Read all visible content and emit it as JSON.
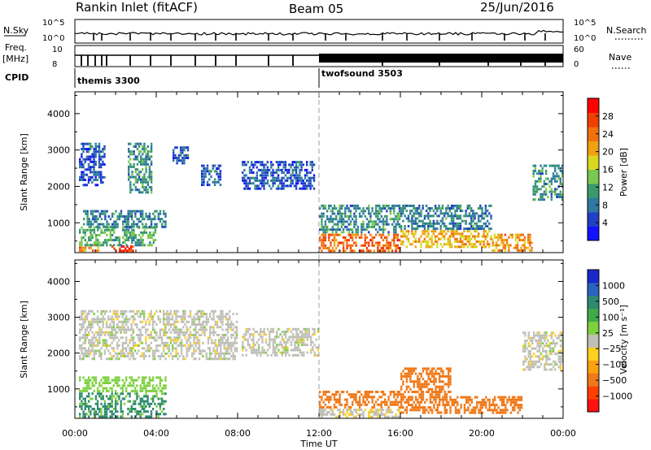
{
  "header": {
    "station": "Rankin Inlet (fitACF)",
    "beam": "Beam 05",
    "date": "25/Jun/2016"
  },
  "strip_panels": {
    "nsky_label": "N.Sky",
    "nsky_ticks": [
      "10^5",
      "10^0"
    ],
    "nsearch_label": "N.Search",
    "nsearch_ticks": [
      "10^5",
      "10^0"
    ],
    "freq_label": "Freq.",
    "freq_unit": "[MHz]",
    "freq_ticks": [
      "10",
      "8"
    ],
    "nave_label": "Nave",
    "nave_ticks": [
      "60",
      "0"
    ],
    "cpid_label": "CPID",
    "cpid_modes": [
      {
        "name": "themis 3300",
        "start_hour": 0
      },
      {
        "name": "twofsound 3503",
        "start_hour": 12
      }
    ]
  },
  "colors": {
    "power_scale": [
      "#1212ff",
      "#2040c8",
      "#2f78a0",
      "#3a9a6e",
      "#7ac850",
      "#d8d820",
      "#f0a010",
      "#f07010",
      "#f04000",
      "#ff0000"
    ],
    "velocity_scale": [
      "#1a28c8",
      "#2a64c0",
      "#2e8a70",
      "#3faa48",
      "#7ed040",
      "#c0c0b8",
      "#ffd020",
      "#ffa010",
      "#f07818",
      "#ff4000",
      "#ff1010"
    ]
  },
  "chart_data": [
    {
      "type": "heatmap",
      "title": "Power",
      "colorbar_label": "Power [dB]",
      "colorbar_ticks": [
        "28",
        "24",
        "20",
        "16",
        "12",
        "8",
        "4"
      ],
      "colorbar_range": [
        0,
        32
      ],
      "ylabel": "Slant Range [km]",
      "yticks": [
        "4000",
        "3000",
        "2000",
        "1000"
      ],
      "ylim": [
        180,
        4600
      ],
      "xlim_hours": [
        0,
        24
      ],
      "xticks": [
        "00:00",
        "04:00",
        "08:00",
        "12:00",
        "16:00",
        "20:00",
        "00:00"
      ],
      "regions": [
        {
          "t": [
            0.2,
            1.2
          ],
          "r": [
            190,
            420
          ],
          "value": 22
        },
        {
          "t": [
            1.8,
            2.9
          ],
          "r": [
            200,
            380
          ],
          "value": 28
        },
        {
          "t": [
            0.2,
            4.0
          ],
          "r": [
            350,
            900
          ],
          "value": 12
        },
        {
          "t": [
            0.4,
            4.5
          ],
          "r": [
            850,
            1350
          ],
          "value": 9
        },
        {
          "t": [
            0.2,
            1.5
          ],
          "r": [
            2000,
            3200
          ],
          "value": 6
        },
        {
          "t": [
            2.6,
            3.8
          ],
          "r": [
            1800,
            3200
          ],
          "value": 10
        },
        {
          "t": [
            4.8,
            5.6
          ],
          "r": [
            2600,
            3100
          ],
          "value": 7
        },
        {
          "t": [
            6.2,
            7.2
          ],
          "r": [
            2000,
            2600
          ],
          "value": 6
        },
        {
          "t": [
            8.2,
            11.8
          ],
          "r": [
            1900,
            2700
          ],
          "value": 6
        },
        {
          "t": [
            12.0,
            16.0
          ],
          "r": [
            190,
            700
          ],
          "value": 25
        },
        {
          "t": [
            12.0,
            16.0
          ],
          "r": [
            700,
            1500
          ],
          "value": 10
        },
        {
          "t": [
            16.0,
            20.5
          ],
          "r": [
            300,
            800
          ],
          "value": 20
        },
        {
          "t": [
            16.0,
            20.5
          ],
          "r": [
            800,
            1500
          ],
          "value": 9
        },
        {
          "t": [
            20.5,
            22.5
          ],
          "r": [
            200,
            700
          ],
          "value": 22
        },
        {
          "t": [
            22.5,
            24.0
          ],
          "r": [
            1600,
            2600
          ],
          "value": 10
        }
      ]
    },
    {
      "type": "heatmap",
      "title": "Velocity",
      "colorbar_label": "Velocity [m s⁻¹]",
      "colorbar_ticks": [
        "1000",
        "500",
        "100",
        "25",
        "−25",
        "−100",
        "−500",
        "−1000"
      ],
      "ylabel": "Slant Range [km]",
      "yticks": [
        "4000",
        "3000",
        "2000",
        "1000"
      ],
      "ylim": [
        180,
        4600
      ],
      "xlim_hours": [
        0,
        24
      ],
      "xticks": [
        "00:00",
        "04:00",
        "08:00",
        "12:00",
        "16:00",
        "20:00",
        "00:00"
      ],
      "xlabel": "Time UT",
      "regions": [
        {
          "t": [
            0.2,
            4.5
          ],
          "r": [
            190,
            900
          ],
          "value": 120
        },
        {
          "t": [
            0.2,
            4.5
          ],
          "r": [
            900,
            1350
          ],
          "value": 60
        },
        {
          "t": [
            0.2,
            8.0
          ],
          "r": [
            1800,
            3200
          ],
          "value": 0
        },
        {
          "t": [
            8.2,
            12.0
          ],
          "r": [
            1900,
            2700
          ],
          "value": 0
        },
        {
          "t": [
            12.0,
            16.0
          ],
          "r": [
            190,
            450
          ],
          "value": -10
        },
        {
          "t": [
            12.0,
            16.0
          ],
          "r": [
            450,
            950
          ],
          "value": -300
        },
        {
          "t": [
            16.0,
            18.5
          ],
          "r": [
            300,
            1600
          ],
          "value": -200
        },
        {
          "t": [
            18.5,
            22.0
          ],
          "r": [
            300,
            800
          ],
          "value": -150
        },
        {
          "t": [
            22.0,
            24.0
          ],
          "r": [
            1500,
            2600
          ],
          "value": 0
        }
      ]
    }
  ]
}
